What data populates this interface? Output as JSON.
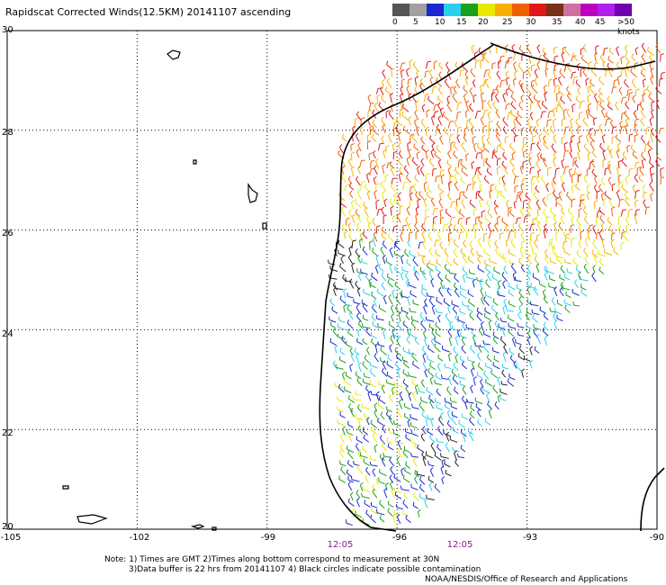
{
  "title": "Rapidscat Corrected Winds(12.5KM) 20141107 ascending",
  "colorbar": {
    "labels": [
      "0",
      "5",
      "10",
      "15",
      "20",
      "25",
      "30",
      "35",
      "40",
      "45",
      ">50 knots"
    ],
    "colors": [
      "#555555",
      "#a0a0a0",
      "#1a28d0",
      "#28d0f0",
      "#1ba01b",
      "#e8e800",
      "#f8b000",
      "#f06000",
      "#e01818",
      "#7a3018",
      "#d070a0",
      "#c000c0",
      "#b020f0",
      "#7000b0"
    ]
  },
  "axes": {
    "lat_labels": [
      "30",
      "28",
      "26",
      "24",
      "22",
      "20"
    ],
    "lon_labels": [
      "-105",
      "-102",
      "-99",
      "-96",
      "-93",
      "-90"
    ],
    "lat_range": [
      20,
      30
    ],
    "lon_range": [
      -105,
      -90
    ]
  },
  "time_labels": [
    "12:05",
    "12:05"
  ],
  "notes": {
    "line1": "Note: 1) Times are GMT 2)Times along bottom correspond to measurement at 30N",
    "line2": "3)Data buffer is 22 hrs from 20141107 4) Black circles indicate possible contamination",
    "credit": "NOAA/NESDIS/Office of Research and Applications"
  }
}
